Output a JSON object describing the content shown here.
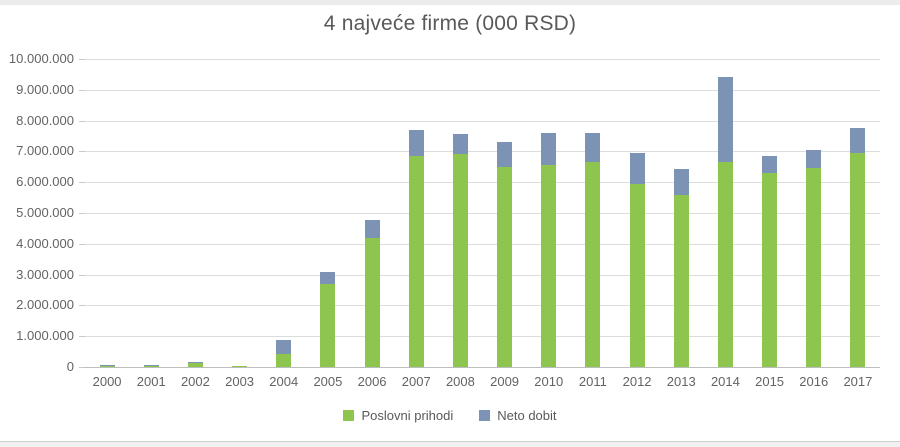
{
  "page": {
    "background": "#ffffff"
  },
  "chart_data": {
    "type": "bar",
    "stacked": true,
    "title": "4 najveće firme (000 RSD)",
    "xlabel": "",
    "ylabel": "",
    "ylim": [
      0,
      10000000
    ],
    "ytick_step": 1000000,
    "ytick_format": "dot-thousands",
    "grid": "horizontal",
    "legend_position": "bottom",
    "categories": [
      "2000",
      "2001",
      "2002",
      "2003",
      "2004",
      "2005",
      "2006",
      "2007",
      "2008",
      "2009",
      "2010",
      "2011",
      "2012",
      "2013",
      "2014",
      "2015",
      "2016",
      "2017"
    ],
    "series": [
      {
        "name": "Poslovni prihodi",
        "color": "#8ec54e",
        "values": [
          15000,
          30000,
          120000,
          5000,
          430000,
          2700000,
          4200000,
          6850000,
          6900000,
          6500000,
          6550000,
          6650000,
          5950000,
          5600000,
          6650000,
          6300000,
          6450000,
          6950000
        ]
      },
      {
        "name": "Neto dobit",
        "color": "#7c93b5",
        "values": [
          5000,
          10000,
          15000,
          0,
          440000,
          400000,
          600000,
          850000,
          650000,
          800000,
          1050000,
          950000,
          1000000,
          850000,
          2750000,
          550000,
          600000,
          800000
        ]
      }
    ],
    "text_colors": {
      "title": "#595959",
      "axis_labels": "#636363",
      "legend": "#595959"
    }
  }
}
